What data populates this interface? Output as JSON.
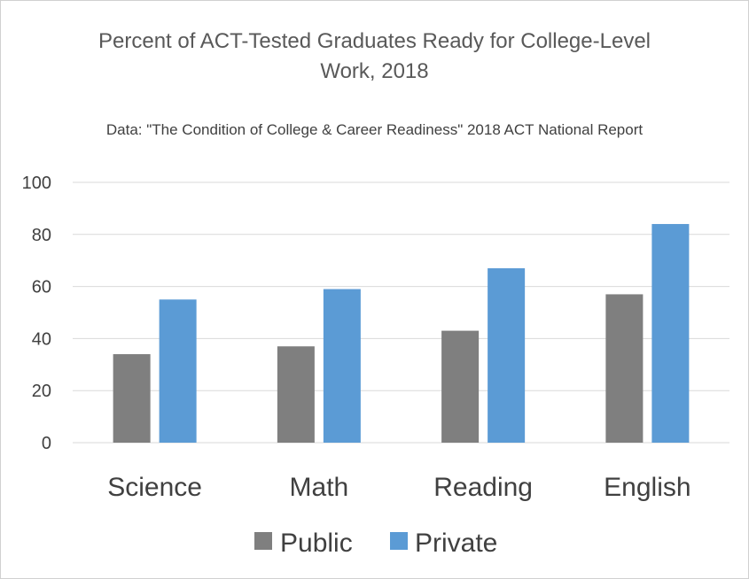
{
  "chart_data": {
    "type": "bar",
    "title": "Percent of ACT-Tested Graduates Ready for College-Level Work, 2018",
    "subtitle": "Data: \"The Condition of College & Career Readiness\" 2018 ACT National Report",
    "categories": [
      "Science",
      "Math",
      "Reading",
      "English"
    ],
    "series": [
      {
        "name": "Public",
        "values": [
          34,
          37,
          43,
          57
        ],
        "color": "#7f7f7f"
      },
      {
        "name": "Private",
        "values": [
          55,
          59,
          67,
          84
        ],
        "color": "#5b9bd5"
      }
    ],
    "ylim": [
      0,
      100
    ],
    "yticks": [
      0,
      20,
      40,
      60,
      80,
      100
    ],
    "grid": true,
    "legend_position": "bottom"
  }
}
